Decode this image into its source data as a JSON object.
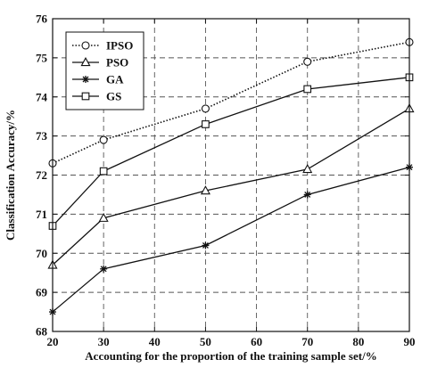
{
  "chart_data": {
    "type": "line",
    "title": "",
    "xlabel": "Accounting for the proportion of the training sample set/%",
    "ylabel": "Classification Accuracy/%",
    "xlim": [
      20,
      90
    ],
    "ylim": [
      68,
      76
    ],
    "xticks": [
      20,
      30,
      40,
      50,
      60,
      70,
      80,
      90
    ],
    "yticks": [
      68,
      69,
      70,
      71,
      72,
      73,
      74,
      75,
      76
    ],
    "grid": true,
    "legend_position": "top-left",
    "x": [
      20,
      30,
      50,
      70,
      90
    ],
    "series": [
      {
        "name": "IPSO",
        "marker": "circle",
        "line": "dotted",
        "values": [
          72.3,
          72.9,
          73.7,
          74.9,
          75.4
        ]
      },
      {
        "name": "PSO",
        "marker": "triangle",
        "line": "solid",
        "values": [
          69.7,
          70.9,
          71.6,
          72.15,
          73.7
        ]
      },
      {
        "name": "GA",
        "marker": "star",
        "line": "solid",
        "values": [
          68.5,
          69.6,
          70.2,
          71.5,
          72.2
        ]
      },
      {
        "name": "GS",
        "marker": "square",
        "line": "solid",
        "values": [
          70.7,
          72.1,
          73.3,
          74.2,
          74.5
        ]
      }
    ]
  }
}
